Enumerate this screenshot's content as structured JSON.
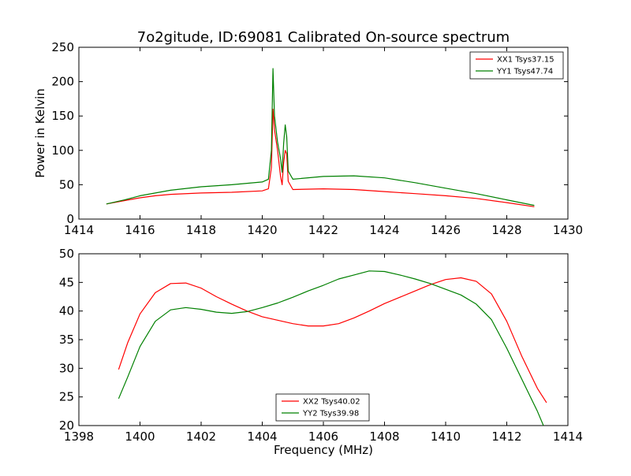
{
  "chart_data": [
    {
      "type": "line",
      "title": "7o2gitude, ID:69081 Calibrated On-source spectrum",
      "xlabel": "",
      "ylabel": "Power in Kelvin",
      "xlim": [
        1414,
        1430
      ],
      "ylim": [
        0,
        250
      ],
      "xticks": [
        "1414",
        "1416",
        "1418",
        "1420",
        "1422",
        "1424",
        "1426",
        "1428",
        "1430"
      ],
      "yticks": [
        "0",
        "50",
        "100",
        "150",
        "200",
        "250"
      ],
      "grid": false,
      "legend": "top-right",
      "series": [
        {
          "name": "XX1 Tsys37.15",
          "color": "#ff0000",
          "x": [
            1414.9,
            1415.5,
            1416.0,
            1416.5,
            1417.0,
            1418.0,
            1419.0,
            1420.0,
            1420.2,
            1420.3,
            1420.35,
            1420.4,
            1420.5,
            1420.6,
            1420.65,
            1420.7,
            1420.75,
            1420.8,
            1420.85,
            1421.0,
            1422.0,
            1423.0,
            1424.0,
            1425.0,
            1426.0,
            1427.0,
            1428.0,
            1428.9
          ],
          "y": [
            22,
            27,
            31,
            34,
            36,
            38,
            39,
            41,
            44,
            75,
            160,
            130,
            100,
            62,
            50,
            82,
            100,
            95,
            55,
            43,
            44,
            43,
            40,
            37,
            34,
            30,
            24,
            18
          ]
        },
        {
          "name": "YY1 Tsys47.74",
          "color": "#008000",
          "x": [
            1414.9,
            1415.5,
            1416.0,
            1416.5,
            1417.0,
            1418.0,
            1419.0,
            1420.0,
            1420.2,
            1420.3,
            1420.35,
            1420.4,
            1420.5,
            1420.6,
            1420.65,
            1420.7,
            1420.75,
            1420.8,
            1420.85,
            1421.0,
            1422.0,
            1423.0,
            1424.0,
            1425.0,
            1426.0,
            1427.0,
            1428.0,
            1428.9
          ],
          "y": [
            22,
            28,
            34,
            38,
            42,
            47,
            50,
            54,
            58,
            100,
            219,
            150,
            112,
            88,
            68,
            110,
            137,
            120,
            70,
            58,
            62,
            63,
            60,
            53,
            45,
            37,
            28,
            20
          ]
        }
      ]
    },
    {
      "type": "line",
      "title": "",
      "xlabel": "Frequency (MHz)",
      "ylabel": "",
      "xlim": [
        1398,
        1414
      ],
      "ylim": [
        20,
        50
      ],
      "xticks": [
        "1398",
        "1400",
        "1402",
        "1404",
        "1406",
        "1408",
        "1410",
        "1412",
        "1414"
      ],
      "yticks": [
        "20",
        "25",
        "30",
        "35",
        "40",
        "45",
        "50"
      ],
      "grid": false,
      "legend": "bottom-center",
      "series": [
        {
          "name": "XX2 Tsys40.02",
          "color": "#ff0000",
          "x": [
            1399.3,
            1399.6,
            1400.0,
            1400.5,
            1401.0,
            1401.5,
            1402.0,
            1402.5,
            1403.0,
            1403.5,
            1404.0,
            1404.5,
            1405.0,
            1405.5,
            1406.0,
            1406.5,
            1407.0,
            1407.5,
            1408.0,
            1408.5,
            1409.0,
            1409.5,
            1410.0,
            1410.5,
            1411.0,
            1411.5,
            1412.0,
            1412.5,
            1413.0,
            1413.3
          ],
          "y": [
            29.8,
            34.5,
            39.5,
            43.2,
            44.8,
            44.9,
            44.0,
            42.5,
            41.2,
            40.0,
            39.0,
            38.4,
            37.8,
            37.4,
            37.4,
            37.8,
            38.8,
            40.0,
            41.3,
            42.4,
            43.5,
            44.6,
            45.5,
            45.8,
            45.2,
            43.0,
            38.2,
            32.0,
            26.5,
            24.0
          ]
        },
        {
          "name": "YY2 Tsys39.98",
          "color": "#008000",
          "x": [
            1399.3,
            1399.6,
            1400.0,
            1400.5,
            1401.0,
            1401.5,
            1402.0,
            1402.5,
            1403.0,
            1403.5,
            1404.0,
            1404.5,
            1405.0,
            1405.5,
            1406.0,
            1406.5,
            1407.0,
            1407.5,
            1408.0,
            1408.5,
            1409.0,
            1409.5,
            1410.0,
            1410.5,
            1411.0,
            1411.5,
            1412.0,
            1412.5,
            1413.0,
            1413.2
          ],
          "y": [
            24.7,
            28.5,
            33.8,
            38.2,
            40.2,
            40.6,
            40.3,
            39.8,
            39.6,
            39.9,
            40.6,
            41.4,
            42.4,
            43.5,
            44.5,
            45.6,
            46.3,
            47.0,
            46.9,
            46.3,
            45.6,
            44.8,
            43.8,
            42.8,
            41.2,
            38.5,
            33.5,
            28.0,
            22.5,
            20.0
          ]
        }
      ]
    }
  ]
}
